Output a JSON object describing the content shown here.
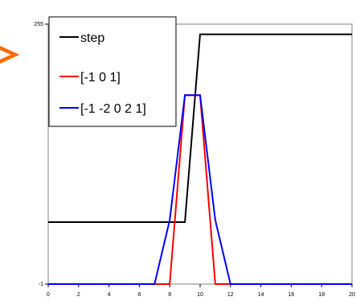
{
  "chart_data": {
    "type": "line",
    "title": "",
    "xlabel": "",
    "ylabel": "",
    "xlim": [
      0,
      20
    ],
    "ylim": [
      -1,
      255
    ],
    "x_ticks": [
      0,
      2,
      4,
      6,
      8,
      10,
      12,
      14,
      16,
      18,
      20
    ],
    "x_tick_labels": [
      "0",
      "2",
      "4",
      "6",
      "8",
      "10",
      "12",
      "14",
      "16",
      "18",
      "20"
    ],
    "y_ticks": [
      -1,
      255
    ],
    "y_tick_labels": [
      "-1",
      "255"
    ],
    "grid": false,
    "legend_position": "top-left",
    "series": [
      {
        "name": "step",
        "color": "#000000",
        "x": [
          0,
          1,
          2,
          3,
          4,
          5,
          6,
          7,
          8,
          9,
          10,
          11,
          12,
          13,
          14,
          15,
          16,
          17,
          18,
          19,
          20
        ],
        "y": [
          60,
          60,
          60,
          60,
          60,
          60,
          60,
          60,
          60,
          60,
          245,
          245,
          245,
          245,
          245,
          245,
          245,
          245,
          245,
          245,
          245
        ]
      },
      {
        "name": "[-1 0 1]",
        "color": "#ff0000",
        "x": [
          0,
          1,
          2,
          3,
          4,
          5,
          6,
          7,
          8,
          9,
          10,
          11,
          12,
          13,
          14,
          15,
          16,
          17,
          18,
          19,
          20
        ],
        "y": [
          -1,
          -1,
          -1,
          -1,
          -1,
          -1,
          -1,
          -1,
          -1,
          185,
          185,
          -1,
          -1,
          -1,
          -1,
          -1,
          -1,
          -1,
          -1,
          -1,
          -1
        ]
      },
      {
        "name": "[-1 -2 0 2 1]",
        "color": "#0000ff",
        "x": [
          0,
          1,
          2,
          3,
          4,
          5,
          6,
          7,
          8,
          9,
          10,
          11,
          12,
          13,
          14,
          15,
          16,
          17,
          18,
          19,
          20
        ],
        "y": [
          -1,
          -1,
          -1,
          -1,
          -1,
          -1,
          -1,
          -1,
          62,
          185,
          185,
          62,
          -1,
          -1,
          -1,
          -1,
          -1,
          -1,
          -1,
          -1,
          -1
        ]
      }
    ]
  },
  "annotation": {
    "color": "#ff6a00",
    "icon": "arrow-right-icon"
  }
}
